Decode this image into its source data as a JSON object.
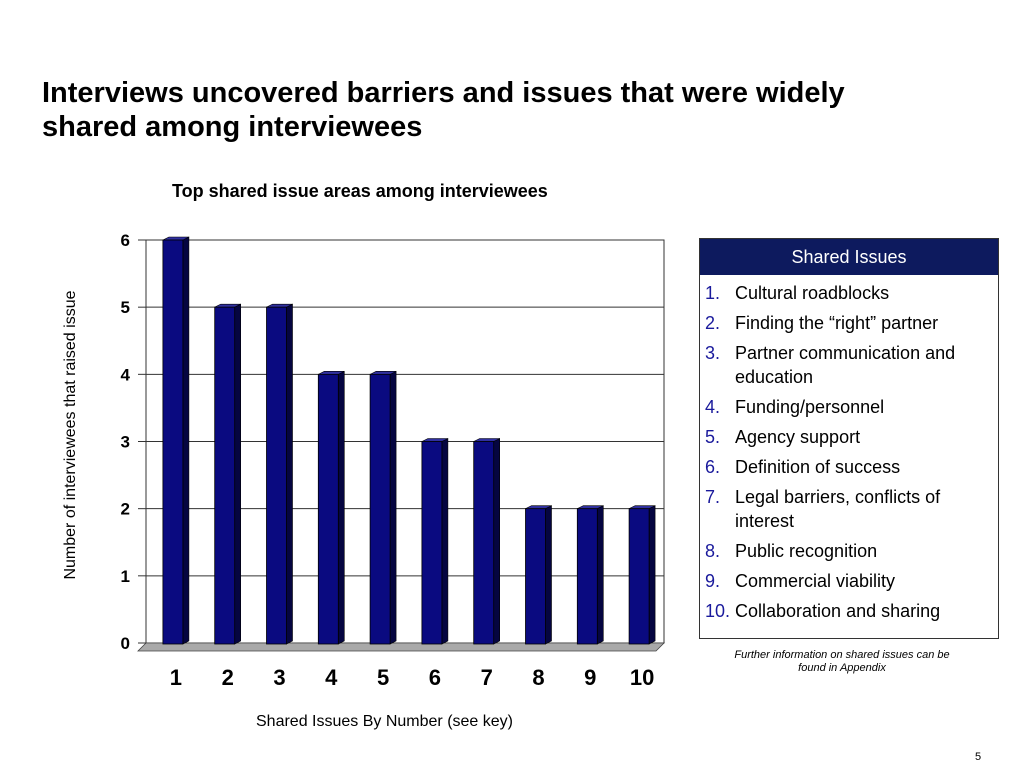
{
  "slide": {
    "title": "Interviews uncovered barriers and issues that were widely shared among interviewees",
    "page_number": "5"
  },
  "chart_data": {
    "type": "bar",
    "title": "Top shared issue areas among interviewees",
    "xlabel": "Shared Issues By Number (see key)",
    "ylabel": "Number of interviewees that raised issue",
    "categories": [
      "1",
      "2",
      "3",
      "4",
      "5",
      "6",
      "7",
      "8",
      "9",
      "10"
    ],
    "values": [
      6,
      5,
      5,
      4,
      4,
      3,
      3,
      2,
      2,
      2
    ],
    "ylim": [
      0,
      6
    ],
    "yticks": [
      0,
      1,
      2,
      3,
      4,
      5,
      6
    ],
    "grid": true,
    "bar_color": "#0a0a80",
    "style": "3d"
  },
  "key": {
    "header": "Shared Issues",
    "items": [
      {
        "num": "1.",
        "text": "Cultural roadblocks"
      },
      {
        "num": "2.",
        "text": "Finding the “right” partner"
      },
      {
        "num": "3.",
        "text": "Partner communication and education"
      },
      {
        "num": "4.",
        "text": "Funding/personnel"
      },
      {
        "num": "5.",
        "text": "Agency support"
      },
      {
        "num": "6.",
        "text": "Definition of success"
      },
      {
        "num": "7.",
        "text": "Legal barriers, conflicts of interest"
      },
      {
        "num": "8.",
        "text": "Public recognition"
      },
      {
        "num": "9.",
        "text": "Commercial viability"
      },
      {
        "num": "10.",
        "text": "Collaboration and sharing"
      }
    ],
    "note": "Further information on shared issues can be found in Appendix"
  }
}
